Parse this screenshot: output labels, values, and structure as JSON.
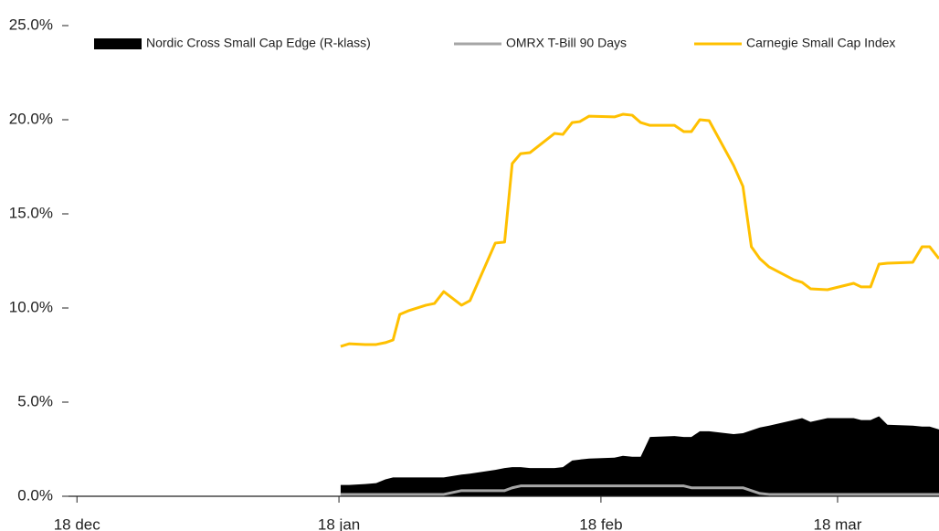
{
  "chart_data": {
    "type": "line",
    "x": [
      31.2,
      32.2,
      34.1,
      35.4,
      36.5,
      37.4,
      38.2,
      39.2,
      41.3,
      42.3,
      43.4,
      45.5,
      46.5,
      49.5,
      50.6,
      51.5,
      52.5,
      53.6,
      56.5,
      57.5,
      58.6,
      59.5,
      60.6,
      63.6,
      64.6,
      65.7,
      66.7,
      67.8,
      70.7,
      71.8,
      72.7,
      73.7,
      74.8,
      77.7,
      78.8,
      79.8,
      80.8,
      81.9,
      84.8,
      85.8,
      86.8,
      88.8,
      91.9,
      92.8,
      93.9,
      94.9,
      95.9,
      98.9,
      100.0,
      100.9,
      102
    ],
    "series": [
      {
        "name": "Nordic Cross Small Cap Edge (R-klass)",
        "type": "area",
        "color": "#000000",
        "values": [
          0.6,
          0.6,
          0.65,
          0.7,
          0.9,
          1.0,
          1.0,
          1.0,
          1.0,
          1.0,
          1.0,
          1.15,
          1.2,
          1.4,
          1.5,
          1.55,
          1.55,
          1.5,
          1.5,
          1.55,
          1.9,
          1.95,
          2.0,
          2.05,
          2.15,
          2.1,
          2.1,
          3.15,
          3.2,
          3.15,
          3.15,
          3.45,
          3.45,
          3.3,
          3.35,
          3.5,
          3.65,
          3.75,
          4.05,
          4.15,
          3.95,
          4.15,
          4.15,
          4.05,
          4.05,
          4.25,
          3.8,
          3.75,
          3.7,
          3.7,
          3.55
        ]
      },
      {
        "name": "OMRX T-Bill 90 Days",
        "type": "line",
        "color": "#a6a6a6",
        "values": [
          0.1,
          0.1,
          0.1,
          0.1,
          0.1,
          0.1,
          0.1,
          0.1,
          0.1,
          0.1,
          0.1,
          0.3,
          0.3,
          0.3,
          0.3,
          0.45,
          0.55,
          0.55,
          0.55,
          0.55,
          0.55,
          0.55,
          0.55,
          0.55,
          0.55,
          0.55,
          0.55,
          0.55,
          0.55,
          0.55,
          0.45,
          0.45,
          0.45,
          0.45,
          0.45,
          0.3,
          0.15,
          0.1,
          0.1,
          0.1,
          0.1,
          0.1,
          0.1,
          0.1,
          0.1,
          0.1,
          0.1,
          0.1,
          0.1,
          0.1,
          0.1
        ]
      },
      {
        "name": "Carnegie Small Cap Index",
        "type": "line",
        "color": "#ffc000",
        "values": [
          7.96,
          8.1,
          8.06,
          8.06,
          8.16,
          8.3,
          9.66,
          9.85,
          10.15,
          10.24,
          10.87,
          10.15,
          10.39,
          13.45,
          13.5,
          17.67,
          18.2,
          18.25,
          19.27,
          19.22,
          19.85,
          19.9,
          20.19,
          20.15,
          20.29,
          20.24,
          19.85,
          19.7,
          19.7,
          19.37,
          19.37,
          20.0,
          19.95,
          17.57,
          16.46,
          13.25,
          12.62,
          12.18,
          11.5,
          11.36,
          11.02,
          10.97,
          11.31,
          11.12,
          11.12,
          12.33,
          12.38,
          12.43,
          13.25,
          13.25,
          12.62
        ]
      }
    ],
    "xlim": [
      -1,
      102
    ],
    "xticks": [
      {
        "value": 0,
        "label": "18 dec"
      },
      {
        "value": 31,
        "label": "18 jan"
      },
      {
        "value": 62,
        "label": "18 feb"
      },
      {
        "value": 90,
        "label": "18 mar"
      }
    ],
    "ylim": [
      0,
      25
    ],
    "yticks": [
      {
        "value": 0,
        "label": "0.0%"
      },
      {
        "value": 5,
        "label": "5.0%"
      },
      {
        "value": 10,
        "label": "10.0%"
      },
      {
        "value": 15,
        "label": "15.0%"
      },
      {
        "value": 20,
        "label": "20.0%"
      },
      {
        "value": 25,
        "label": "25.0%"
      }
    ],
    "legend": "top"
  }
}
